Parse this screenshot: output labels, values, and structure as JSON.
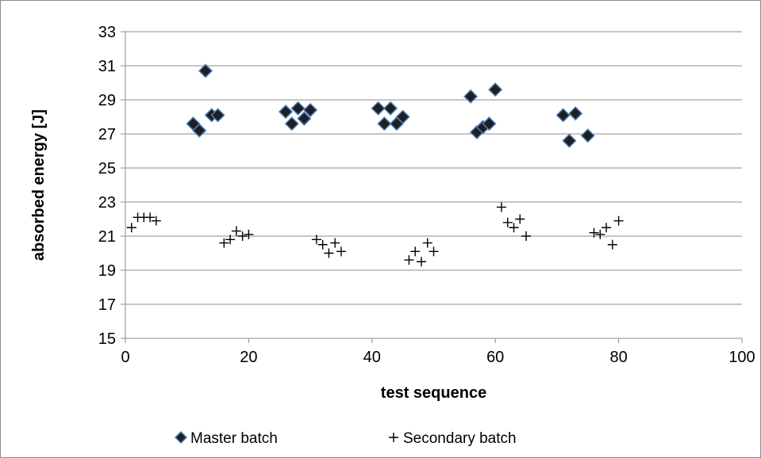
{
  "chart_data": {
    "type": "scatter",
    "xlabel": "test sequence",
    "ylabel": "absorbed energy [J]",
    "xlim": [
      0,
      100
    ],
    "ylim": [
      15,
      33
    ],
    "xticks": [
      0,
      20,
      40,
      60,
      80,
      100
    ],
    "yticks": [
      15,
      17,
      19,
      21,
      23,
      25,
      27,
      29,
      31,
      33
    ],
    "grid": "horizontal",
    "legend_position": "bottom",
    "series": [
      {
        "name": "Master batch",
        "marker": "diamond",
        "color": "#1f1f1f",
        "edge_color": "#4a7ebb",
        "points": [
          [
            11,
            27.6
          ],
          [
            12,
            27.2
          ],
          [
            13,
            30.7
          ],
          [
            14,
            28.1
          ],
          [
            15,
            28.1
          ],
          [
            26,
            28.3
          ],
          [
            27,
            27.6
          ],
          [
            28,
            28.5
          ],
          [
            29,
            27.9
          ],
          [
            30,
            28.4
          ],
          [
            41,
            28.5
          ],
          [
            42,
            27.6
          ],
          [
            43,
            28.5
          ],
          [
            44,
            27.6
          ],
          [
            45,
            28.0
          ],
          [
            56,
            29.2
          ],
          [
            57,
            27.1
          ],
          [
            58,
            27.4
          ],
          [
            59,
            27.6
          ],
          [
            60,
            29.6
          ],
          [
            71,
            28.1
          ],
          [
            72,
            26.6
          ],
          [
            73,
            28.2
          ],
          [
            75,
            26.9
          ]
        ]
      },
      {
        "name": "Secondary batch",
        "marker": "plus",
        "color": "#000000",
        "points": [
          [
            1,
            21.5
          ],
          [
            2,
            22.1
          ],
          [
            3,
            22.1
          ],
          [
            4,
            22.1
          ],
          [
            5,
            21.9
          ],
          [
            16,
            20.6
          ],
          [
            17,
            20.8
          ],
          [
            18,
            21.3
          ],
          [
            19,
            21.0
          ],
          [
            20,
            21.1
          ],
          [
            31,
            20.8
          ],
          [
            32,
            20.5
          ],
          [
            33,
            20.0
          ],
          [
            34,
            20.6
          ],
          [
            35,
            20.1
          ],
          [
            46,
            19.6
          ],
          [
            47,
            20.1
          ],
          [
            48,
            19.5
          ],
          [
            49,
            20.6
          ],
          [
            50,
            20.1
          ],
          [
            61,
            22.7
          ],
          [
            62,
            21.8
          ],
          [
            63,
            21.5
          ],
          [
            64,
            22.0
          ],
          [
            65,
            21.0
          ],
          [
            76,
            21.2
          ],
          [
            77,
            21.1
          ],
          [
            78,
            21.5
          ],
          [
            79,
            20.5
          ],
          [
            80,
            21.9
          ]
        ]
      }
    ]
  }
}
